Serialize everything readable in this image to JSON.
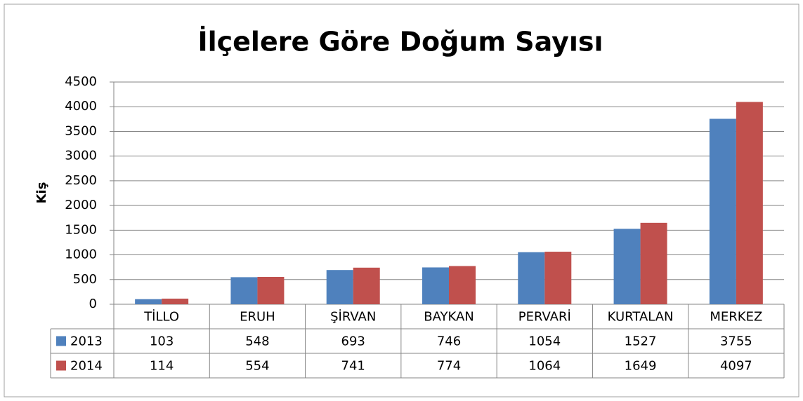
{
  "chart_data": {
    "type": "bar",
    "title": "İlçelere Göre Doğum Sayısı",
    "y_label": "Kiş",
    "categories": [
      "TİLLO",
      "ERUH",
      "ŞİRVAN",
      "BAYKAN",
      "PERVARİ",
      "KURTALAN",
      "MERKEZ"
    ],
    "series": [
      {
        "name": "2013",
        "color": "#4f81bd",
        "values": [
          103,
          548,
          693,
          746,
          1054,
          1527,
          3755
        ]
      },
      {
        "name": "2014",
        "color": "#c0504d",
        "values": [
          114,
          554,
          741,
          774,
          1064,
          1649,
          4097
        ]
      }
    ],
    "ylim": [
      0,
      4500
    ],
    "yticks": [
      0,
      500,
      1000,
      1500,
      2000,
      2500,
      3000,
      3500,
      4000,
      4500
    ],
    "grid": true
  }
}
